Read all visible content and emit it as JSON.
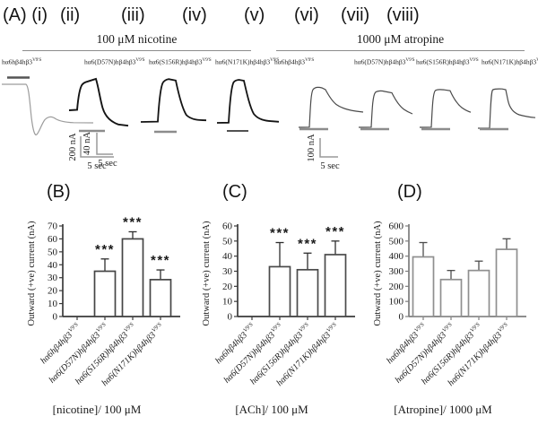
{
  "panelA": {
    "index_labels": [
      "(A) (i)",
      "(ii)",
      "(iii)",
      "(iv)",
      "(v)",
      "(vi)",
      "(vii)",
      "(viii)"
    ],
    "group_headers": [
      "100 μM nicotine",
      "1000 μM atropine"
    ],
    "constructs": [
      {
        "base": "hα6hβ4hβ3",
        "sup": "V9'S"
      },
      {
        "base": "hα6(D57N)hβ4hβ3",
        "sup": "V9'S"
      },
      {
        "base": "hα6(S156R)hβ4hβ3",
        "sup": "V9'S"
      },
      {
        "base": "hα6(N171K)hβ4hβ3",
        "sup": "V9'S"
      }
    ],
    "scalebars": [
      {
        "amp": "200 nA",
        "time": "5 sec"
      },
      {
        "amp": "40 nA",
        "time": "5 sec"
      },
      {
        "amp": "100 nA",
        "time": "5 sec"
      }
    ]
  },
  "chart_data": [
    {
      "type": "bar",
      "panel_label": "(B)",
      "ylabel": "Outward (+ve) current (nA)",
      "xlabel": "[nicotine]/ 100 μM",
      "ylim": [
        0,
        70
      ],
      "ytick_step": 10,
      "grid": false,
      "categories": [
        {
          "base": "hα6hβ4hβ3",
          "sup": "V9'S"
        },
        {
          "base": "hα6(D57N)hβ4hβ3",
          "sup": "V9'S"
        },
        {
          "base": "hα6(S156R)hβ4hβ3",
          "sup": "V9'S"
        },
        {
          "base": "hα6(N171K)hβ4hβ3",
          "sup": "V9'S"
        }
      ],
      "values": [
        0,
        35,
        60,
        28.5
      ],
      "errors": [
        0,
        9.5,
        5.5,
        7.5
      ],
      "sig": [
        "",
        "***",
        "***",
        "***"
      ],
      "bar_fill": "#ffffff",
      "bar_stroke": "#454545",
      "axis_color": "#3a3a3a",
      "err_color": "#2e2e2e"
    },
    {
      "type": "bar",
      "panel_label": "(C)",
      "ylabel": "Outward (+ve) current (nA)",
      "xlabel": "[ACh]/ 100 μM",
      "ylim": [
        0,
        60
      ],
      "ytick_step": 10,
      "grid": false,
      "categories": [
        {
          "base": "hα6hβ4hβ3",
          "sup": "V9'S"
        },
        {
          "base": "hα6(D57N)hβ4hβ3",
          "sup": "V9'S"
        },
        {
          "base": "hα6(S156R)hβ4hβ3",
          "sup": "V9'S"
        },
        {
          "base": "hα6(N171K)hβ4hβ3",
          "sup": "V9'S"
        }
      ],
      "values": [
        0,
        33,
        31,
        41
      ],
      "errors": [
        0,
        16,
        11,
        9
      ],
      "sig": [
        "",
        "***",
        "***",
        "***"
      ],
      "bar_fill": "#ffffff",
      "bar_stroke": "#4a4a4a",
      "axis_color": "#3a3a3a",
      "err_color": "#2e2e2e"
    },
    {
      "type": "bar",
      "panel_label": "(D)",
      "ylabel": "Outward (+ve) current (nA)",
      "xlabel": "[Atropine]/ 1000 μM",
      "ylim": [
        0,
        600
      ],
      "ytick_step": 100,
      "grid": false,
      "categories": [
        {
          "base": "hα6hβ4hβ3",
          "sup": "V9'S"
        },
        {
          "base": "hα6(D57N)hβ4hβ3",
          "sup": "V9'S"
        },
        {
          "base": "hα6(S156R)hβ4hβ3",
          "sup": "V9'S"
        },
        {
          "base": "hα6(N171K)hβ4hβ3",
          "sup": "V9'S"
        }
      ],
      "values": [
        395,
        245,
        305,
        445
      ],
      "errors": [
        95,
        60,
        62,
        70
      ],
      "sig": [
        "",
        "",
        "",
        ""
      ],
      "bar_fill": "#ffffff",
      "bar_stroke": "#8f8f8f",
      "axis_color": "#7d7d7d",
      "err_color": "#4d4d4d"
    }
  ],
  "colors": {
    "trace_dark": "#141414",
    "trace_mid": "#4a4a4a",
    "trace_light": "#9c9c9c",
    "drug_bar": "#8c8c8c",
    "scalebar": "#9a9a9a",
    "background": "#ffffff"
  }
}
